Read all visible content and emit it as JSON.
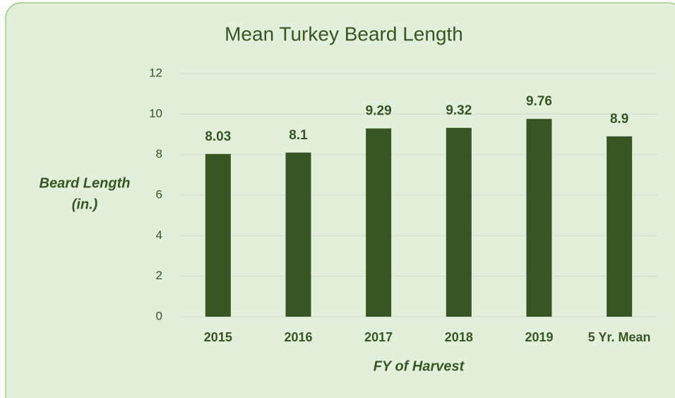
{
  "chart_data": {
    "type": "bar",
    "title": "Mean Turkey Beard Length",
    "categories": [
      "2015",
      "2016",
      "2017",
      "2018",
      "2019",
      "5 Yr. Mean"
    ],
    "values": [
      8.03,
      8.1,
      9.29,
      9.32,
      9.76,
      8.9
    ],
    "color": "#375623",
    "ylim": [
      0,
      12
    ],
    "yticks": [
      0,
      2,
      4,
      6,
      8,
      10,
      12
    ],
    "grid": true,
    "y_label": [
      "Beard Length",
      "(in.)"
    ],
    "x_label": "FY of Harvest"
  }
}
